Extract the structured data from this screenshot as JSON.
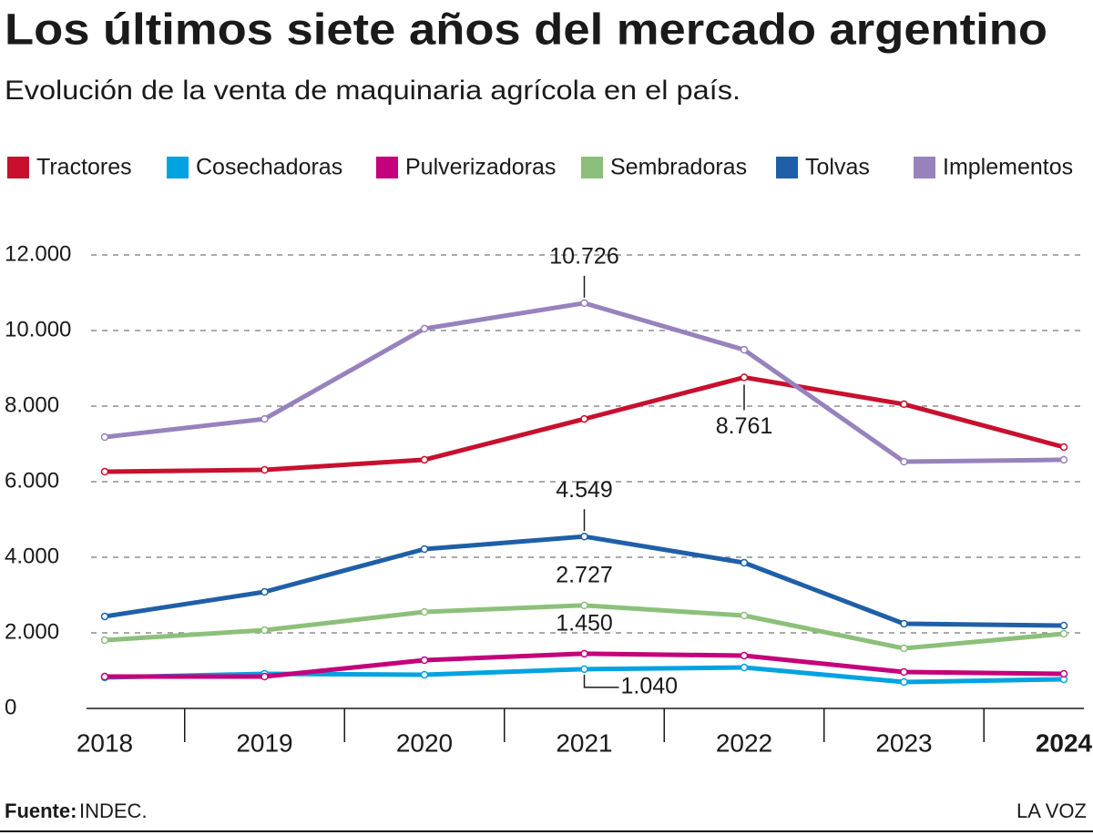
{
  "chart_data": {
    "type": "line",
    "title": "Los últimos siete años del mercado argentino",
    "subtitle": "Evolución de la venta de maquinaria agrícola en el país.",
    "categories": [
      "2018",
      "2019",
      "2020",
      "2021",
      "2022",
      "2023",
      "2024"
    ],
    "series": [
      {
        "name": "Tractores",
        "color": "#c8102e",
        "values": [
          6265,
          6313,
          6580,
          7660,
          8761,
          8050,
          6916
        ],
        "value_labels": [
          null,
          null,
          null,
          null,
          "8.761",
          null,
          null
        ]
      },
      {
        "name": "Cosechadoras",
        "color": "#00a3e0",
        "values": [
          819,
          916,
          892,
          1040,
          1084,
          699,
          771
        ],
        "value_labels": [
          null,
          null,
          null,
          "1.040",
          null,
          null,
          null
        ]
      },
      {
        "name": "Pulverizadoras",
        "color": "#c4007a",
        "values": [
          843,
          843,
          1277,
          1450,
          1398,
          964,
          916
        ],
        "value_labels": [
          null,
          null,
          null,
          "1.450",
          null,
          null,
          null
        ]
      },
      {
        "name": "Sembradoras",
        "color": "#8cc07a",
        "values": [
          1807,
          2072,
          2554,
          2727,
          2458,
          1590,
          1976
        ],
        "value_labels": [
          null,
          null,
          null,
          "2.727",
          null,
          null,
          null
        ]
      },
      {
        "name": "Tolvas",
        "color": "#1f5fa8",
        "values": [
          2434,
          3084,
          4217,
          4549,
          3855,
          2241,
          2193
        ],
        "value_labels": [
          null,
          null,
          null,
          "4.549",
          null,
          null,
          null
        ]
      },
      {
        "name": "Implementos",
        "color": "#9882bd",
        "values": [
          7180,
          7660,
          10050,
          10726,
          9490,
          6530,
          6580
        ],
        "value_labels": [
          null,
          null,
          null,
          "10.726",
          null,
          null,
          null
        ]
      }
    ],
    "ylim": [
      0,
      12000
    ],
    "yticks": [
      0,
      {
        "value": 2000,
        "label": "2.000"
      },
      {
        "value": 4000,
        "label": "4.000"
      },
      {
        "value": 6000,
        "label": "6.000"
      },
      {
        "value": 8000,
        "label": "8.000"
      },
      {
        "value": 10000,
        "label": "10.000"
      },
      {
        "value": 12000,
        "label": "12.000"
      }
    ],
    "grid": true,
    "legend": "top",
    "source_label": "Fuente:",
    "source": "INDEC.",
    "credit": "LA VOZ"
  }
}
